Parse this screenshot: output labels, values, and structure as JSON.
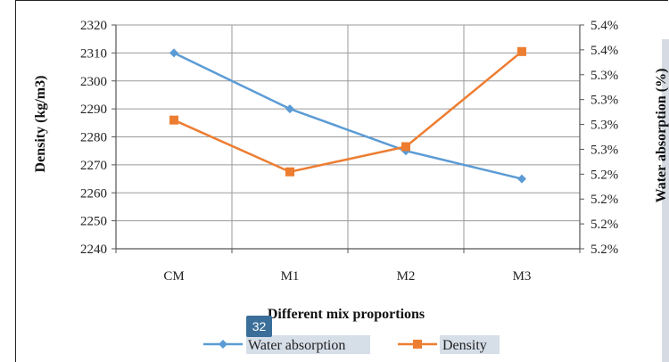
{
  "page_badge": "32",
  "chart_data": {
    "type": "line",
    "categories": [
      "CM",
      "M1",
      "M2",
      "M3"
    ],
    "xlabel": "Different mix proportions",
    "ylabel": "Density (kg/m3)",
    "ylabel_right": "Water absorption (%)",
    "ylim": [
      2240,
      2320
    ],
    "yticks": [
      "2240",
      "2250",
      "2260",
      "2270",
      "2280",
      "2290",
      "2300",
      "2310",
      "2320"
    ],
    "y2ticks": [
      "5.2%",
      "5.2%",
      "5.2%",
      "5.2%",
      "5.3%",
      "5.3%",
      "5.3%",
      "5.3%",
      "5.4%",
      "5.4%"
    ],
    "series": [
      {
        "name": "Water absorption",
        "axis": "right",
        "color": "#5b9bd5",
        "marker": "diamond",
        "values": [
          2310,
          2290,
          2275,
          2265
        ]
      },
      {
        "name": "Density",
        "axis": "left",
        "color": "#ed7d31",
        "marker": "square",
        "values": [
          2286,
          2267.5,
          2276.5,
          2310.5
        ]
      }
    ],
    "grid": true,
    "legend": "bottom"
  }
}
